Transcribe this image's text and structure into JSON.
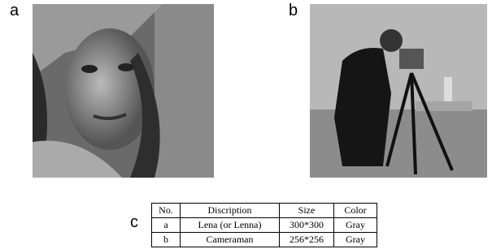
{
  "labels": [
    "a",
    "b",
    "c"
  ],
  "table": {
    "header": [
      "No.",
      "Discription",
      "Size",
      "Color"
    ],
    "rows": [
      [
        "a",
        "Lena (or Lenna)",
        "300*300",
        "Gray"
      ],
      [
        "b",
        "Cameraman",
        "256*256",
        "Gray"
      ]
    ]
  }
}
